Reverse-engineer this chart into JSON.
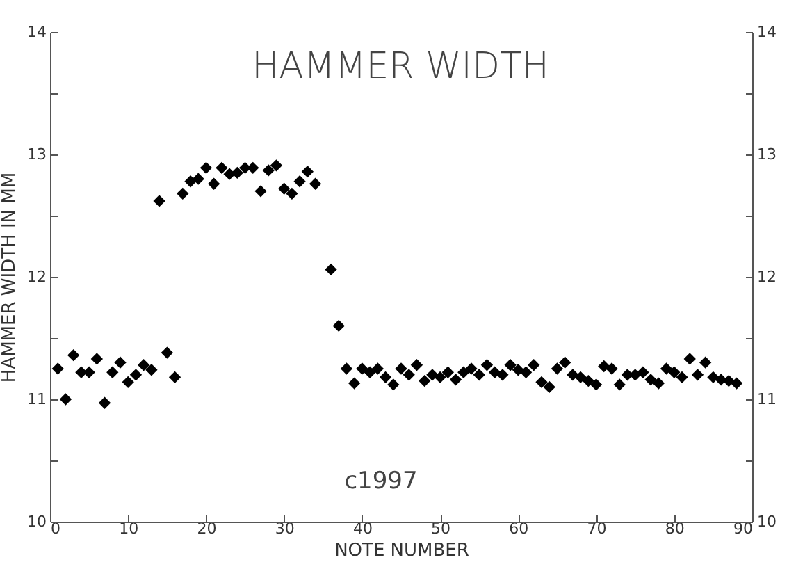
{
  "chart_data": {
    "type": "scatter",
    "title": "HAMMER WIDTH",
    "xlabel": "NOTE NUMBER",
    "ylabel": "HAMMER WIDTH IN MM",
    "annotations": [
      "c1997"
    ],
    "x": [
      1,
      2,
      3,
      4,
      5,
      6,
      7,
      8,
      9,
      10,
      11,
      12,
      13,
      14,
      15,
      16,
      17,
      18,
      19,
      20,
      21,
      22,
      23,
      24,
      25,
      26,
      27,
      28,
      29,
      30,
      31,
      32,
      33,
      34,
      36,
      37,
      38,
      39,
      40,
      41,
      42,
      43,
      44,
      45,
      46,
      47,
      48,
      49,
      50,
      51,
      52,
      53,
      54,
      55,
      56,
      57,
      58,
      59,
      60,
      61,
      62,
      63,
      64,
      65,
      66,
      67,
      68,
      69,
      70,
      71,
      72,
      73,
      74,
      75,
      76,
      77,
      78,
      79,
      80,
      81,
      82,
      83,
      84,
      85,
      86,
      87,
      88
    ],
    "series": [
      {
        "color": "#000000",
        "values": [
          11.25,
          11.0,
          11.36,
          11.22,
          11.22,
          11.33,
          10.97,
          11.22,
          11.3,
          11.14,
          11.2,
          11.28,
          11.24,
          12.62,
          11.38,
          11.18,
          12.68,
          12.78,
          12.8,
          12.89,
          12.76,
          12.89,
          12.84,
          12.85,
          12.89,
          12.89,
          12.7,
          12.87,
          12.91,
          12.72,
          12.68,
          12.78,
          12.86,
          12.76,
          12.06,
          11.6,
          11.25,
          11.13,
          11.25,
          11.22,
          11.25,
          11.18,
          11.12,
          11.25,
          11.2,
          11.28,
          11.15,
          11.2,
          11.18,
          11.22,
          11.16,
          11.22,
          11.25,
          11.2,
          11.28,
          11.22,
          11.2,
          11.28,
          11.24,
          11.22,
          11.28,
          11.14,
          11.1,
          11.25,
          11.3,
          11.2,
          11.18,
          11.15,
          11.12,
          11.27,
          11.25,
          11.12,
          11.2,
          11.2,
          11.22,
          11.16,
          11.13,
          11.25,
          11.22,
          11.18,
          11.33,
          11.2,
          11.3,
          11.18,
          11.16,
          11.15,
          11.13
        ]
      }
    ],
    "xlim": [
      0,
      90
    ],
    "xticks": [
      0,
      10,
      20,
      30,
      40,
      50,
      60,
      70,
      80,
      90
    ],
    "ylim": [
      10,
      14
    ],
    "yticks": [
      10,
      {
        "value": 10.5,
        "label": null
      },
      11,
      {
        "value": 11.5,
        "label": null
      },
      12,
      {
        "value": 12.5,
        "label": null
      },
      13,
      {
        "value": 13.5,
        "label": null
      },
      14
    ],
    "y2lim": [
      10,
      14
    ],
    "y2ticks": [
      10,
      {
        "value": 10.5,
        "label": null
      },
      11,
      {
        "value": 11.5,
        "label": null
      },
      12,
      {
        "value": 12.5,
        "label": null
      },
      13,
      {
        "value": 13.5,
        "label": null
      },
      14
    ],
    "marker": "diamond",
    "grid": false
  }
}
